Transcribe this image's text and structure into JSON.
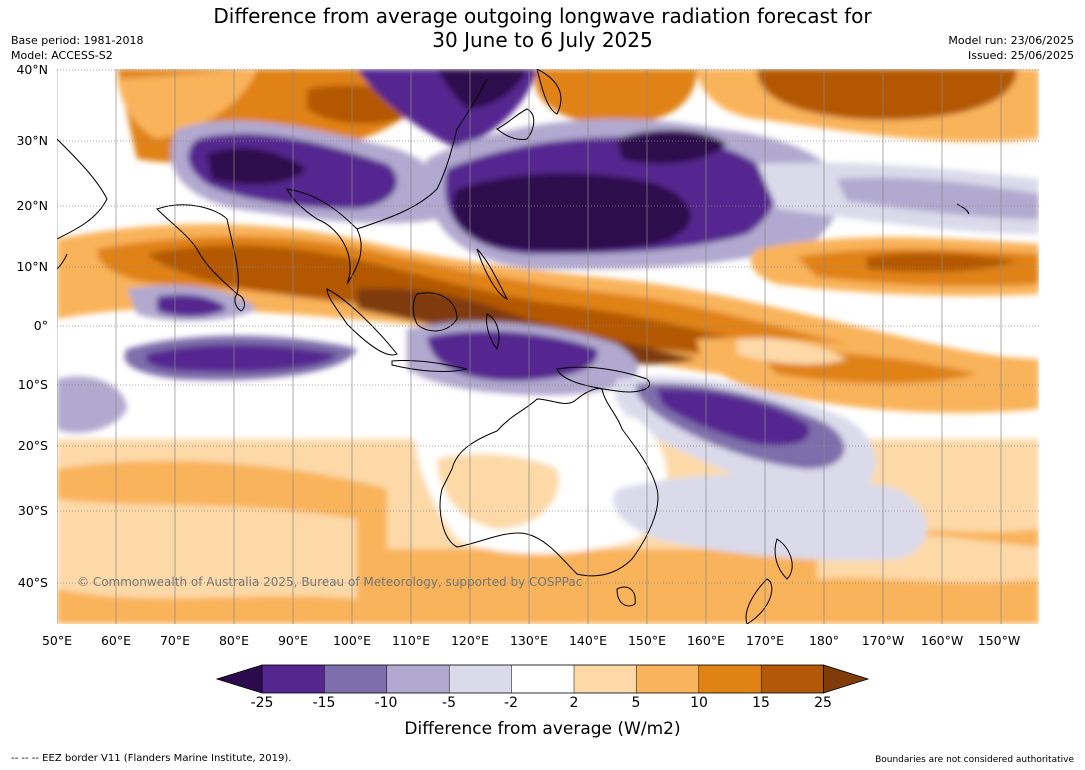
{
  "title_line1": "Difference from average outgoing longwave radiation forecast for",
  "title_line2": "30 June to 6 July 2025",
  "base_period": "Base period: 1981-2018",
  "model": "Model: ACCESS-S2",
  "model_run": "Model run: 23/06/2025",
  "issued": "Issued: 25/06/2025",
  "copyright": "© Commonwealth of Australia 2025, Bureau of Meteorology, supported by COSPPac",
  "lat_labels": [
    "40°N",
    "30°N",
    "20°N",
    "10°N",
    "0°",
    "10°S",
    "20°S",
    "30°S",
    "40°S"
  ],
  "lon_labels": [
    "50°E",
    "60°E",
    "70°E",
    "80°E",
    "90°E",
    "100°E",
    "110°E",
    "120°E",
    "130°E",
    "140°E",
    "150°E",
    "160°E",
    "170°E",
    "180°",
    "170°W",
    "160°W",
    "150°W"
  ],
  "colorbar": {
    "ticks": [
      "-25",
      "-15",
      "-10",
      "-5",
      "-2",
      "2",
      "5",
      "10",
      "15",
      "25"
    ],
    "title": "Difference from average (W/m2)",
    "colors": [
      "#2d0a4e",
      "#54278f",
      "#7e6eab",
      "#b1a9cf",
      "#dadaeb",
      "#ffffff",
      "#fdd9a8",
      "#f9b35a",
      "#e08214",
      "#b35806",
      "#7f3b08"
    ]
  },
  "footer_left": "--  --  -- EEZ border V11 (Flanders Marine Institute, 2019).",
  "footer_right": "Boundaries are not considered authoritative"
}
